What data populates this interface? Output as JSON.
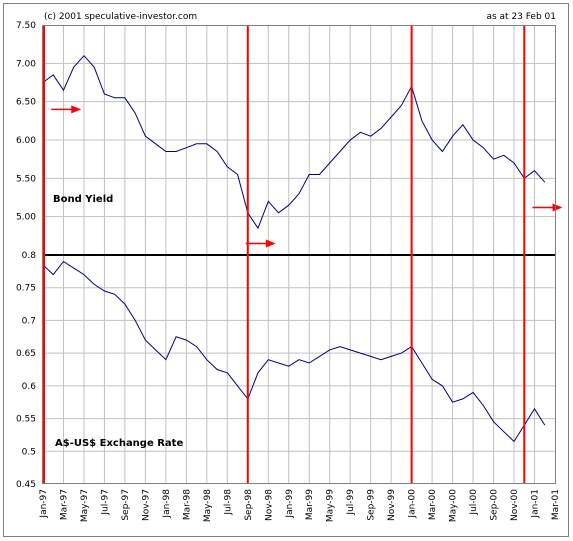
{
  "header": {
    "copyright": "(c) 2001 speculative-investor.com",
    "date_note": "as at 23 Feb 01"
  },
  "chart_data": [
    {
      "type": "line",
      "label": "Bond Yield",
      "color": "#000080",
      "ylim": [
        4.5,
        7.5
      ],
      "yticks": [
        "5.00",
        "5.50",
        "6.00",
        "6.50",
        "7.00",
        "7.50"
      ],
      "x": [
        "1997-01",
        "1997-02",
        "1997-03",
        "1997-04",
        "1997-05",
        "1997-06",
        "1997-07",
        "1997-08",
        "1997-09",
        "1997-10",
        "1997-11",
        "1997-12",
        "1998-01",
        "1998-02",
        "1998-03",
        "1998-04",
        "1998-05",
        "1998-06",
        "1998-07",
        "1998-08",
        "1998-09",
        "1998-10",
        "1998-11",
        "1998-12",
        "1999-01",
        "1999-02",
        "1999-03",
        "1999-04",
        "1999-05",
        "1999-06",
        "1999-07",
        "1999-08",
        "1999-09",
        "1999-10",
        "1999-11",
        "1999-12",
        "2000-01",
        "2000-02",
        "2000-03",
        "2000-04",
        "2000-05",
        "2000-06",
        "2000-07",
        "2000-08",
        "2000-09",
        "2000-10",
        "2000-11",
        "2000-12",
        "2001-01",
        "2001-02"
      ],
      "y": [
        6.75,
        6.85,
        6.65,
        6.95,
        7.1,
        6.95,
        6.6,
        6.55,
        6.55,
        6.35,
        6.05,
        5.95,
        5.85,
        5.85,
        5.9,
        5.95,
        5.95,
        5.85,
        5.65,
        5.55,
        5.05,
        4.85,
        5.2,
        5.05,
        5.15,
        5.3,
        5.55,
        5.55,
        5.7,
        5.85,
        6.0,
        6.1,
        6.05,
        6.15,
        6.3,
        6.45,
        6.7,
        6.25,
        6.0,
        5.85,
        6.05,
        6.2,
        6.0,
        5.9,
        5.75,
        5.8,
        5.7,
        5.5,
        5.6,
        5.45
      ]
    },
    {
      "type": "line",
      "label": "A$-US$ Exchange Rate",
      "color": "#000080",
      "ylim": [
        0.45,
        0.8
      ],
      "yticks": [
        "0.45",
        "0.5",
        "0.55",
        "0.6",
        "0.65",
        "0.7",
        "0.75",
        "0.8"
      ],
      "x": [
        "1997-01",
        "1997-02",
        "1997-03",
        "1997-04",
        "1997-05",
        "1997-06",
        "1997-07",
        "1997-08",
        "1997-09",
        "1997-10",
        "1997-11",
        "1997-12",
        "1998-01",
        "1998-02",
        "1998-03",
        "1998-04",
        "1998-05",
        "1998-06",
        "1998-07",
        "1998-08",
        "1998-09",
        "1998-10",
        "1998-11",
        "1998-12",
        "1999-01",
        "1999-02",
        "1999-03",
        "1999-04",
        "1999-05",
        "1999-06",
        "1999-07",
        "1999-08",
        "1999-09",
        "1999-10",
        "1999-11",
        "1999-12",
        "2000-01",
        "2000-02",
        "2000-03",
        "2000-04",
        "2000-05",
        "2000-06",
        "2000-07",
        "2000-08",
        "2000-09",
        "2000-10",
        "2000-11",
        "2000-12",
        "2001-01",
        "2001-02"
      ],
      "y": [
        0.785,
        0.77,
        0.79,
        0.78,
        0.77,
        0.755,
        0.745,
        0.74,
        0.725,
        0.7,
        0.67,
        0.655,
        0.64,
        0.675,
        0.67,
        0.66,
        0.64,
        0.625,
        0.62,
        0.6,
        0.58,
        0.62,
        0.64,
        0.635,
        0.63,
        0.64,
        0.635,
        0.645,
        0.655,
        0.66,
        0.655,
        0.65,
        0.645,
        0.64,
        0.645,
        0.65,
        0.66,
        0.635,
        0.61,
        0.6,
        0.575,
        0.58,
        0.59,
        0.57,
        0.545,
        0.53,
        0.515,
        0.54,
        0.565,
        0.54
      ]
    }
  ],
  "x_axis": {
    "tick_labels": [
      "Jan-97",
      "Mar-97",
      "May-97",
      "Jul-97",
      "Sep-97",
      "Nov-97",
      "Jan-98",
      "Mar-98",
      "May-98",
      "Jul-98",
      "Sep-98",
      "Nov-98",
      "Jan-99",
      "Mar-99",
      "May-99",
      "Jul-99",
      "Sep-99",
      "Nov-99",
      "Jan-00",
      "Mar-00",
      "May-00",
      "Jul-00",
      "Sep-00",
      "Nov-00",
      "Jan-01",
      "Mar-01"
    ],
    "range": [
      "1997-01",
      "2001-03"
    ]
  },
  "vertical_markers": {
    "color": "#ff0000",
    "dates": [
      "1997-01",
      "1998-09",
      "2000-01",
      "2000-12"
    ]
  },
  "arrows": {
    "color": "#ff0000",
    "markers": [
      {
        "date": "1997-02",
        "value": 6.4
      },
      {
        "date": "1998-09",
        "value": 4.65
      },
      {
        "date": "2001-01",
        "value": 5.12
      }
    ]
  },
  "grid": true,
  "divider_color": "#000000"
}
